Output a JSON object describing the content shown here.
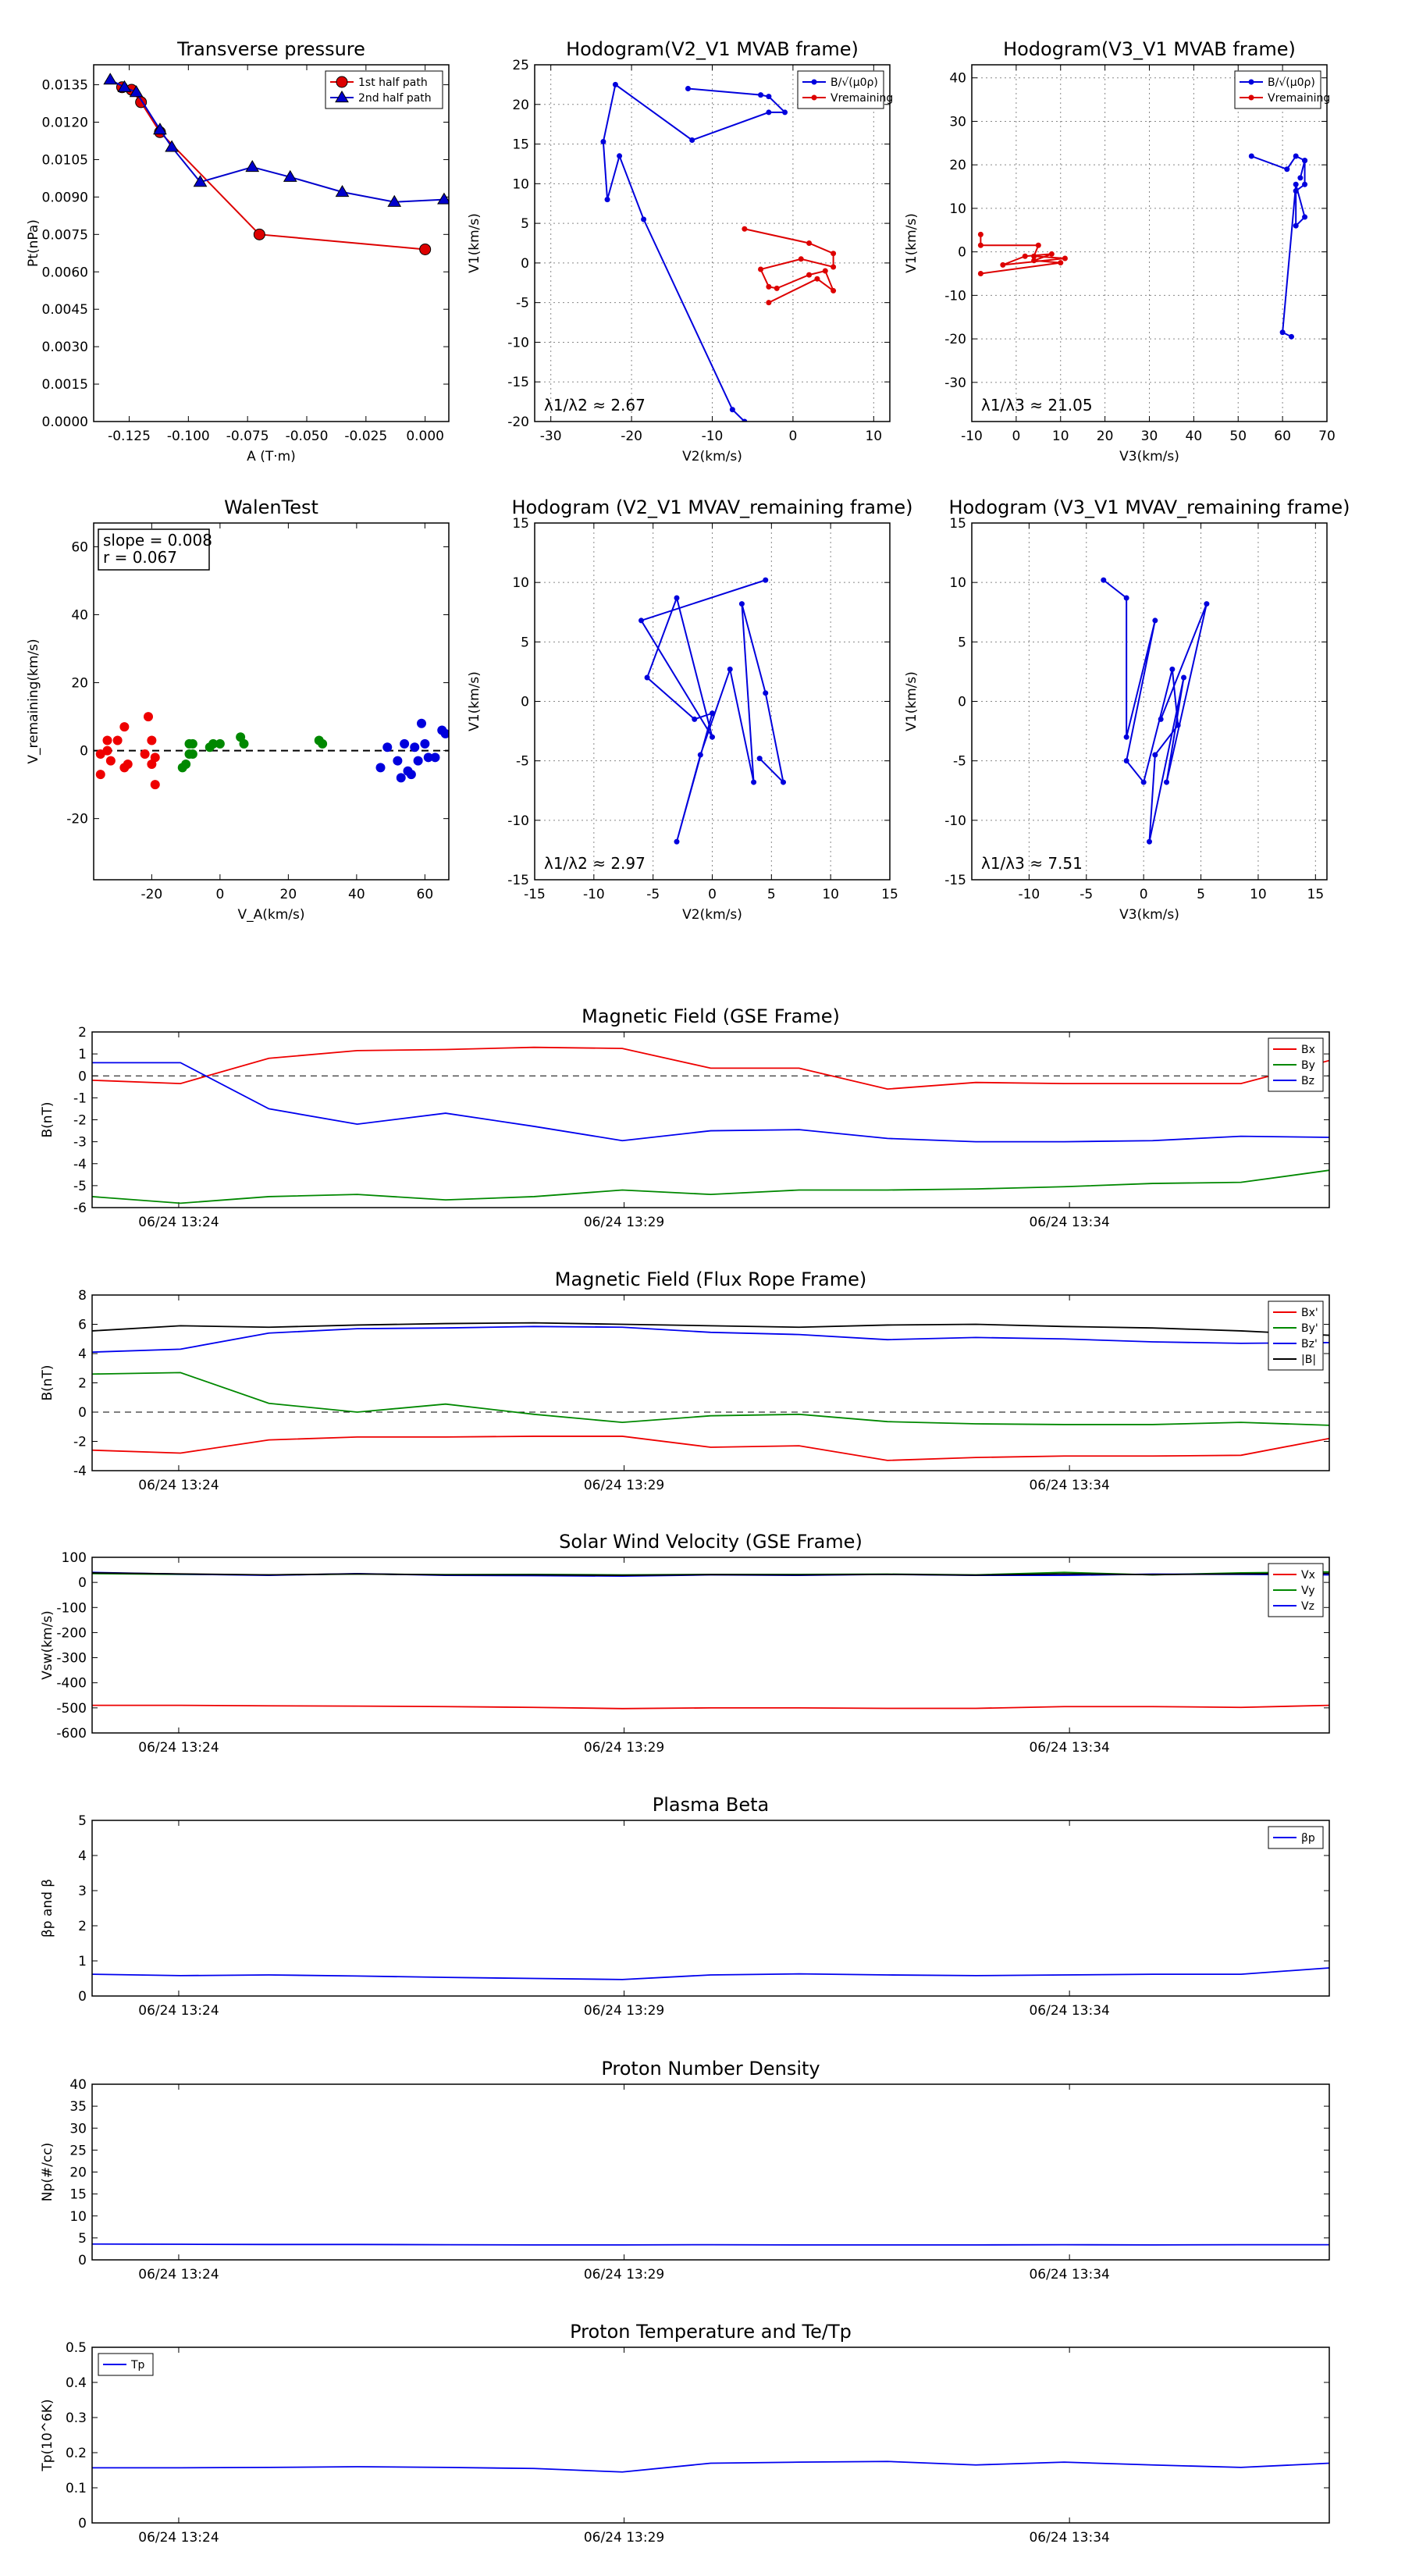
{
  "chart_data": [
    {
      "id": "p1",
      "type": "line",
      "title": "Transverse pressure",
      "xlabel": "A (T·m)",
      "ylabel": "Pt(nPa)",
      "xlim": [
        -0.14,
        0.01
      ],
      "ylim": [
        0,
        0.0143
      ],
      "xticks": [
        -0.125,
        -0.1,
        -0.075,
        -0.05,
        -0.025,
        0.0
      ],
      "xticklabels": [
        "-0.125",
        "-0.100",
        "-0.075",
        "-0.050",
        "-0.025",
        "0.000"
      ],
      "yticks": [
        0,
        0.0015,
        0.003,
        0.0045,
        0.006,
        0.0075,
        0.009,
        0.0105,
        0.012,
        0.0135
      ],
      "yticklabels": [
        "0.0000",
        "0.0015",
        "0.0030",
        "0.0045",
        "0.0060",
        "0.0075",
        "0.0090",
        "0.0105",
        "0.0120",
        "0.0135"
      ],
      "grid": false,
      "legend": "top-right",
      "series": [
        {
          "name": "1st half path",
          "color": "#dd0000",
          "marker": "circle",
          "x": [
            -0.128,
            -0.124,
            -0.12,
            -0.112,
            -0.07,
            0.0
          ],
          "y": [
            0.0134,
            0.0133,
            0.0128,
            0.0116,
            0.0075,
            0.0069
          ]
        },
        {
          "name": "2nd half path",
          "color": "#0000cc",
          "marker": "triangle",
          "x": [
            -0.133,
            -0.127,
            -0.122,
            -0.112,
            -0.107,
            -0.095,
            -0.073,
            -0.057,
            -0.035,
            -0.013,
            0.008
          ],
          "y": [
            0.0137,
            0.0134,
            0.0132,
            0.0117,
            0.011,
            0.0096,
            0.0102,
            0.0098,
            0.0092,
            0.0088,
            0.0089
          ]
        }
      ]
    },
    {
      "id": "p2",
      "type": "line",
      "title": "Hodogram(V2_V1 MVAB frame)",
      "xlabel": "V2(km/s)",
      "ylabel": "V1(km/s)",
      "xlim": [
        -32,
        12
      ],
      "ylim": [
        -20,
        25
      ],
      "xticks": [
        -30,
        -20,
        -10,
        0,
        10
      ],
      "yticks": [
        -20,
        -15,
        -10,
        -5,
        0,
        5,
        10,
        15,
        20,
        25
      ],
      "grid": true,
      "legend": "top-right",
      "annotation": "λ1/λ2 ≈ 2.67",
      "series": [
        {
          "name": "B/√(μ0ρ)",
          "color": "#0000dd",
          "marker": "dot",
          "x": [
            -13,
            -4,
            -3,
            -1,
            -3,
            -12.5,
            -22,
            -23.5,
            -23,
            -21.5,
            -18.5,
            -7.5,
            -6
          ],
          "y": [
            22,
            21.2,
            21,
            19,
            19,
            15.5,
            22.5,
            15.3,
            8,
            13.5,
            5.5,
            -18.5,
            -20
          ]
        },
        {
          "name": "Vremaining",
          "color": "#dd0000",
          "marker": "dot",
          "x": [
            -6,
            2,
            5,
            5,
            1,
            -4,
            -3,
            -2,
            2,
            4,
            5,
            3,
            -3
          ],
          "y": [
            4.3,
            2.5,
            1.2,
            -0.5,
            0.5,
            -0.8,
            -3,
            -3.2,
            -1.5,
            -1,
            -3.5,
            -2,
            -5
          ]
        }
      ]
    },
    {
      "id": "p3",
      "type": "line",
      "title": "Hodogram(V3_V1 MVAB frame)",
      "xlabel": "V3(km/s)",
      "ylabel": "V1(km/s)",
      "xlim": [
        -10,
        70
      ],
      "ylim": [
        -39,
        43
      ],
      "xticks": [
        -10,
        0,
        10,
        20,
        30,
        40,
        50,
        60,
        70
      ],
      "yticks": [
        -30,
        -20,
        -10,
        0,
        10,
        20,
        30,
        40
      ],
      "grid": true,
      "legend": "top-right",
      "annotation": "λ1/λ3 ≈ 21.05",
      "series": [
        {
          "name": "B/√(μ0ρ)",
          "color": "#0000dd",
          "marker": "dot",
          "x": [
            53,
            61,
            63,
            65,
            64,
            65,
            65,
            63,
            63,
            65,
            63,
            60,
            62
          ],
          "y": [
            22,
            19,
            22,
            21,
            17,
            21,
            15.5,
            14,
            6,
            8,
            15.5,
            -18.5,
            -19.5
          ]
        },
        {
          "name": "Vremaining",
          "color": "#dd0000",
          "marker": "dot",
          "x": [
            -8,
            -8,
            5,
            4,
            11,
            -3,
            2,
            8,
            4,
            10,
            -8
          ],
          "y": [
            4,
            1.5,
            1.5,
            -1,
            -1.5,
            -3,
            -1,
            -0.5,
            -2,
            -2.5,
            -5
          ]
        }
      ]
    },
    {
      "id": "p4",
      "type": "scatter",
      "title": "WalenTest",
      "xlabel": "V_A(km/s)",
      "ylabel": "V_remaining(km/s)",
      "xlim": [
        -37,
        67
      ],
      "ylim": [
        -38,
        67
      ],
      "xticks": [
        -20,
        0,
        20,
        40,
        60
      ],
      "yticks": [
        -20,
        0,
        20,
        40,
        60
      ],
      "grid": false,
      "textbox": [
        "slope = 0.008",
        "r = 0.067"
      ],
      "fit_line": [
        [
          -37,
          0
        ],
        [
          67,
          0
        ]
      ],
      "series": [
        {
          "color": "#ee0000",
          "x": [
            -35,
            -35,
            -33,
            -33,
            -32,
            -30,
            -28,
            -28,
            -27,
            -22,
            -21,
            -20,
            -20,
            -19,
            -19
          ],
          "y": [
            -1,
            -7,
            3,
            0,
            -3,
            3,
            7,
            -5,
            -4,
            -1,
            10,
            3,
            -4,
            -10,
            -2
          ]
        },
        {
          "color": "#008800",
          "x": [
            -11,
            -10,
            -9,
            -9,
            -8,
            -8,
            -3,
            -2,
            0,
            6,
            7,
            29,
            30
          ],
          "y": [
            -5,
            -4,
            2,
            -1,
            2,
            -1,
            1,
            2,
            2,
            4,
            2,
            3,
            2
          ]
        },
        {
          "color": "#0000dd",
          "x": [
            47,
            49,
            52,
            53,
            54,
            55,
            56,
            57,
            58,
            59,
            60,
            61,
            63,
            65,
            66
          ],
          "y": [
            -5,
            1,
            -3,
            -8,
            2,
            -6,
            -7,
            1,
            -3,
            8,
            2,
            -2,
            -2,
            6,
            5
          ]
        }
      ]
    },
    {
      "id": "p5",
      "type": "line",
      "title": "Hodogram (V2_V1 MVAV_remaining frame)",
      "xlabel": "V2(km/s)",
      "ylabel": "V1(km/s)",
      "xlim": [
        -15,
        15
      ],
      "ylim": [
        -15,
        15
      ],
      "xticks": [
        -15,
        -10,
        -5,
        0,
        5,
        10,
        15
      ],
      "yticks": [
        -15,
        -10,
        -5,
        0,
        5,
        10,
        15
      ],
      "grid": true,
      "annotation": "λ1/λ2 ≈ 2.97",
      "series": [
        {
          "color": "#0000dd",
          "marker": "dot",
          "x": [
            4.5,
            -6,
            0,
            -3,
            -5.5,
            -1.5,
            0,
            -3,
            -1,
            1.5,
            3.5,
            2.5,
            4.5,
            6,
            4
          ],
          "y": [
            10.2,
            6.8,
            -3,
            8.7,
            2,
            -1.5,
            -1,
            -11.8,
            -4.5,
            2.7,
            -6.8,
            8.2,
            0.7,
            -6.8,
            -4.8
          ]
        }
      ]
    },
    {
      "id": "p6",
      "type": "line",
      "title": "Hodogram (V3_V1 MVAV_remaining frame)",
      "xlabel": "V3(km/s)",
      "ylabel": "V1(km/s)",
      "xlim": [
        -15,
        16
      ],
      "ylim": [
        -15,
        15
      ],
      "xticks": [
        -10,
        -5,
        0,
        5,
        10,
        15
      ],
      "yticks": [
        -15,
        -10,
        -5,
        0,
        5,
        10,
        15
      ],
      "grid": true,
      "annotation": "λ1/λ3 ≈ 7.51",
      "series": [
        {
          "color": "#0000dd",
          "marker": "dot",
          "x": [
            -3.5,
            -1.5,
            -1.5,
            1,
            -1.5,
            0,
            2.5,
            3,
            1,
            0.5,
            3.5,
            2,
            5.5,
            1.5
          ],
          "y": [
            10.2,
            8.7,
            -3,
            6.8,
            -5,
            -6.8,
            2.7,
            -2,
            -4.5,
            -11.8,
            2,
            -6.8,
            8.2,
            -1.5
          ]
        }
      ]
    },
    {
      "id": "t1",
      "type": "line",
      "title": "Magnetic Field (GSE Frame)",
      "ylabel": "B(nT)",
      "ylim": [
        -6,
        2
      ],
      "yticks": [
        -6,
        -5,
        -4,
        -3,
        -2,
        -1,
        0,
        1,
        2
      ],
      "xticklabels": [
        "06/24 13:24",
        "06/24 13:29",
        "06/24 13:34"
      ],
      "xtick_fractions": [
        0.07,
        0.43,
        0.79
      ],
      "grid": false,
      "dashed_zero": true,
      "legend": "top-right",
      "series": [
        {
          "name": "Bx",
          "color": "#ee0000",
          "y": [
            -0.2,
            -0.35,
            0.8,
            1.15,
            1.2,
            1.3,
            1.25,
            0.35,
            0.35,
            -0.6,
            -0.3,
            -0.35,
            -0.35,
            -0.35,
            0.7
          ]
        },
        {
          "name": "By",
          "color": "#008800",
          "y": [
            -5.5,
            -5.8,
            -5.5,
            -5.4,
            -5.65,
            -5.5,
            -5.2,
            -5.4,
            -5.2,
            -5.2,
            -5.15,
            -5.05,
            -4.9,
            -4.85,
            -4.3
          ]
        },
        {
          "name": "Bz",
          "color": "#0000ee",
          "y": [
            0.6,
            0.6,
            -1.5,
            -2.2,
            -1.7,
            -2.3,
            -2.95,
            -2.5,
            -2.45,
            -2.85,
            -3,
            -3,
            -2.95,
            -2.75,
            -2.8
          ]
        }
      ]
    },
    {
      "id": "t2",
      "type": "line",
      "title": "Magnetic Field (Flux Rope Frame)",
      "ylabel": "B(nT)",
      "ylim": [
        -4,
        8
      ],
      "yticks": [
        -4,
        -2,
        0,
        2,
        4,
        6,
        8
      ],
      "xticklabels": [
        "06/24 13:24",
        "06/24 13:29",
        "06/24 13:34"
      ],
      "xtick_fractions": [
        0.07,
        0.43,
        0.79
      ],
      "grid": false,
      "dashed_zero": true,
      "legend": "top-right",
      "series": [
        {
          "name": "Bx'",
          "color": "#ee0000",
          "y": [
            -2.6,
            -2.8,
            -1.9,
            -1.7,
            -1.7,
            -1.65,
            -1.65,
            -2.4,
            -2.3,
            -3.3,
            -3.1,
            -3.0,
            -3.0,
            -2.95,
            -1.8
          ]
        },
        {
          "name": "By'",
          "color": "#008800",
          "y": [
            2.6,
            2.7,
            0.6,
            0.0,
            0.55,
            -0.15,
            -0.7,
            -0.25,
            -0.15,
            -0.65,
            -0.8,
            -0.85,
            -0.85,
            -0.7,
            -0.9
          ]
        },
        {
          "name": "Bz'",
          "color": "#0000ee",
          "y": [
            4.1,
            4.3,
            5.4,
            5.7,
            5.75,
            5.85,
            5.8,
            5.45,
            5.3,
            4.95,
            5.1,
            5.0,
            4.8,
            4.7,
            4.75
          ]
        },
        {
          "name": "|B|",
          "color": "#000000",
          "y": [
            5.55,
            5.9,
            5.8,
            5.95,
            6.05,
            6.1,
            6.0,
            5.9,
            5.8,
            5.95,
            6.0,
            5.85,
            5.75,
            5.55,
            5.25
          ]
        }
      ]
    },
    {
      "id": "t3",
      "type": "line",
      "title": "Solar Wind Velocity (GSE Frame)",
      "ylabel": "Vsw(km/s)",
      "ylim": [
        -600,
        100
      ],
      "yticks": [
        -600,
        -500,
        -400,
        -300,
        -200,
        -100,
        0,
        100
      ],
      "xticklabels": [
        "06/24 13:24",
        "06/24 13:29",
        "06/24 13:34"
      ],
      "xtick_fractions": [
        0.07,
        0.43,
        0.79
      ],
      "grid": false,
      "legend": "top-right",
      "series": [
        {
          "name": "Vx",
          "color": "#ee0000",
          "y": [
            -490,
            -490,
            -492,
            -493,
            -495,
            -498,
            -503,
            -500,
            -500,
            -502,
            -502,
            -495,
            -495,
            -498,
            -490
          ]
        },
        {
          "name": "Vy",
          "color": "#008800",
          "y": [
            35,
            32,
            30,
            33,
            31,
            32,
            30,
            32,
            32,
            33,
            30,
            40,
            30,
            38,
            42
          ]
        },
        {
          "name": "Vz",
          "color": "#0000ee",
          "y": [
            40,
            33,
            28,
            35,
            28,
            27,
            25,
            30,
            28,
            32,
            28,
            28,
            33,
            32,
            30
          ]
        },
        {
          "name": "",
          "color": "#000000",
          "y": [
            38,
            34,
            30,
            34,
            30,
            30,
            28,
            31,
            30,
            32,
            29,
            34,
            31,
            34,
            36
          ]
        }
      ]
    },
    {
      "id": "t4",
      "type": "line",
      "title": "Plasma Beta",
      "ylabel": "βp and β",
      "ylim": [
        0,
        5
      ],
      "yticks": [
        0,
        1,
        2,
        3,
        4,
        5
      ],
      "xticklabels": [
        "06/24 13:24",
        "06/24 13:29",
        "06/24 13:34"
      ],
      "xtick_fractions": [
        0.07,
        0.43,
        0.79
      ],
      "grid": false,
      "legend": "top-right",
      "series": [
        {
          "name": "βp",
          "color": "#0000ee",
          "y": [
            0.62,
            0.58,
            0.6,
            0.57,
            0.53,
            0.5,
            0.47,
            0.6,
            0.63,
            0.6,
            0.58,
            0.6,
            0.62,
            0.62,
            0.8
          ]
        }
      ]
    },
    {
      "id": "t5",
      "type": "line",
      "title": "Proton Number Density",
      "ylabel": "Np(#/cc)",
      "ylim": [
        0,
        40
      ],
      "yticks": [
        0,
        5,
        10,
        15,
        20,
        25,
        30,
        35,
        40
      ],
      "xticklabels": [
        "06/24 13:24",
        "06/24 13:29",
        "06/24 13:34"
      ],
      "xtick_fractions": [
        0.07,
        0.43,
        0.79
      ],
      "grid": false,
      "series": [
        {
          "color": "#0000ee",
          "y": [
            3.6,
            3.55,
            3.5,
            3.5,
            3.45,
            3.4,
            3.4,
            3.45,
            3.4,
            3.4,
            3.4,
            3.45,
            3.4,
            3.45,
            3.45
          ]
        }
      ]
    },
    {
      "id": "t6",
      "type": "line",
      "title": "Proton Temperature and Te/Tp",
      "ylabel": "Tp(10^6K)",
      "ylim": [
        0,
        0.5
      ],
      "yticks": [
        0,
        0.1,
        0.2,
        0.3,
        0.4,
        0.5
      ],
      "xticklabels": [
        "06/24 13:24",
        "06/24 13:29",
        "06/24 13:34"
      ],
      "xtick_fractions": [
        0.07,
        0.43,
        0.79
      ],
      "grid": false,
      "legend": "top-left",
      "series": [
        {
          "name": "Tp",
          "color": "#0000ee",
          "y": [
            0.157,
            0.157,
            0.158,
            0.16,
            0.158,
            0.155,
            0.145,
            0.17,
            0.173,
            0.175,
            0.165,
            0.173,
            0.165,
            0.158,
            0.17
          ]
        }
      ]
    }
  ]
}
